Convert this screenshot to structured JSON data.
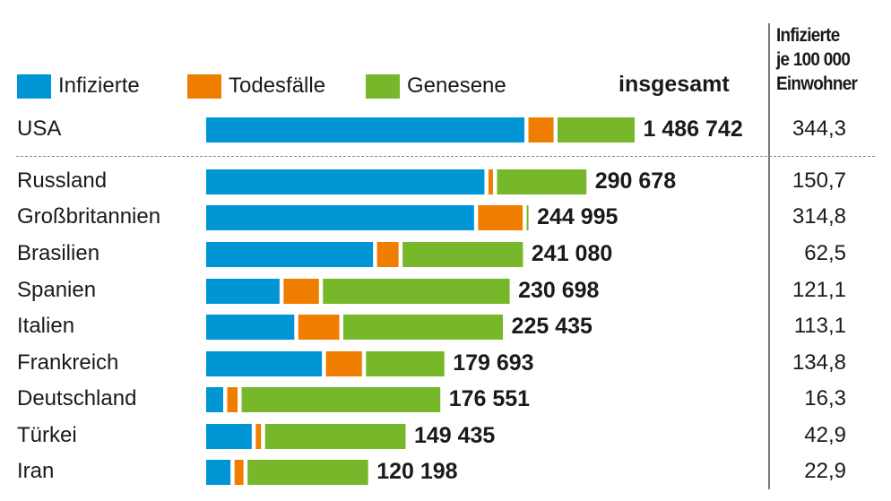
{
  "legend": {
    "infected": "Infizierte",
    "deaths": "Todesfälle",
    "recovered": "Genesene"
  },
  "header": {
    "total": "insgesamt",
    "per_line1": "Infizierte",
    "per_line2": "je 100 000",
    "per_line3": "Einwohner"
  },
  "colors": {
    "infected": "#0096d6",
    "deaths": "#ee7d00",
    "recovered": "#76b82a"
  },
  "chart_data": {
    "type": "bar",
    "stacked": true,
    "orientation": "horizontal",
    "series_names": [
      "Infizierte",
      "Todesfälle",
      "Genesene"
    ],
    "note": "USA row drawn at compressed scale",
    "rows": [
      {
        "country": "USA",
        "infected": 1125342,
        "deaths": 88800,
        "recovered": 272600,
        "total": 1486742,
        "total_label": "1 486 742",
        "per100k": "344,3"
      },
      {
        "country": "Russland",
        "infected": 217300,
        "deaths": 3500,
        "recovered": 69878,
        "total": 290678,
        "total_label": "290 678",
        "per100k": "150,7"
      },
      {
        "country": "Großbritannien",
        "infected": 209199,
        "deaths": 34796,
        "recovered": 1000,
        "total": 244995,
        "total_label": "244 995",
        "per100k": "314,8"
      },
      {
        "country": "Brasilien",
        "infected": 130280,
        "deaths": 16800,
        "recovered": 94000,
        "total": 241080,
        "total_label": "241 080",
        "per100k": "62,5"
      },
      {
        "country": "Spanien",
        "infected": 57298,
        "deaths": 27600,
        "recovered": 145800,
        "total": 230698,
        "total_label": "230 698",
        "per100k": "121,1"
      },
      {
        "country": "Italien",
        "infected": 68800,
        "deaths": 32000,
        "recovered": 124635,
        "total": 225435,
        "total_label": "225 435",
        "per100k": "113,1"
      },
      {
        "country": "Frankreich",
        "infected": 90400,
        "deaths": 28100,
        "recovered": 61193,
        "total": 179693,
        "total_label": "179 693",
        "per100k": "134,8"
      },
      {
        "country": "Deutschland",
        "infected": 13300,
        "deaths": 8100,
        "recovered": 155151,
        "total": 176551,
        "total_label": "176 551",
        "per100k": "16,3"
      },
      {
        "country": "Türkei",
        "infected": 35600,
        "deaths": 4100,
        "recovered": 109735,
        "total": 149435,
        "total_label": "149 435",
        "per100k": "42,9"
      },
      {
        "country": "Iran",
        "infected": 19000,
        "deaths": 7000,
        "recovered": 94198,
        "total": 120198,
        "total_label": "120 198",
        "per100k": "22,9"
      }
    ]
  }
}
